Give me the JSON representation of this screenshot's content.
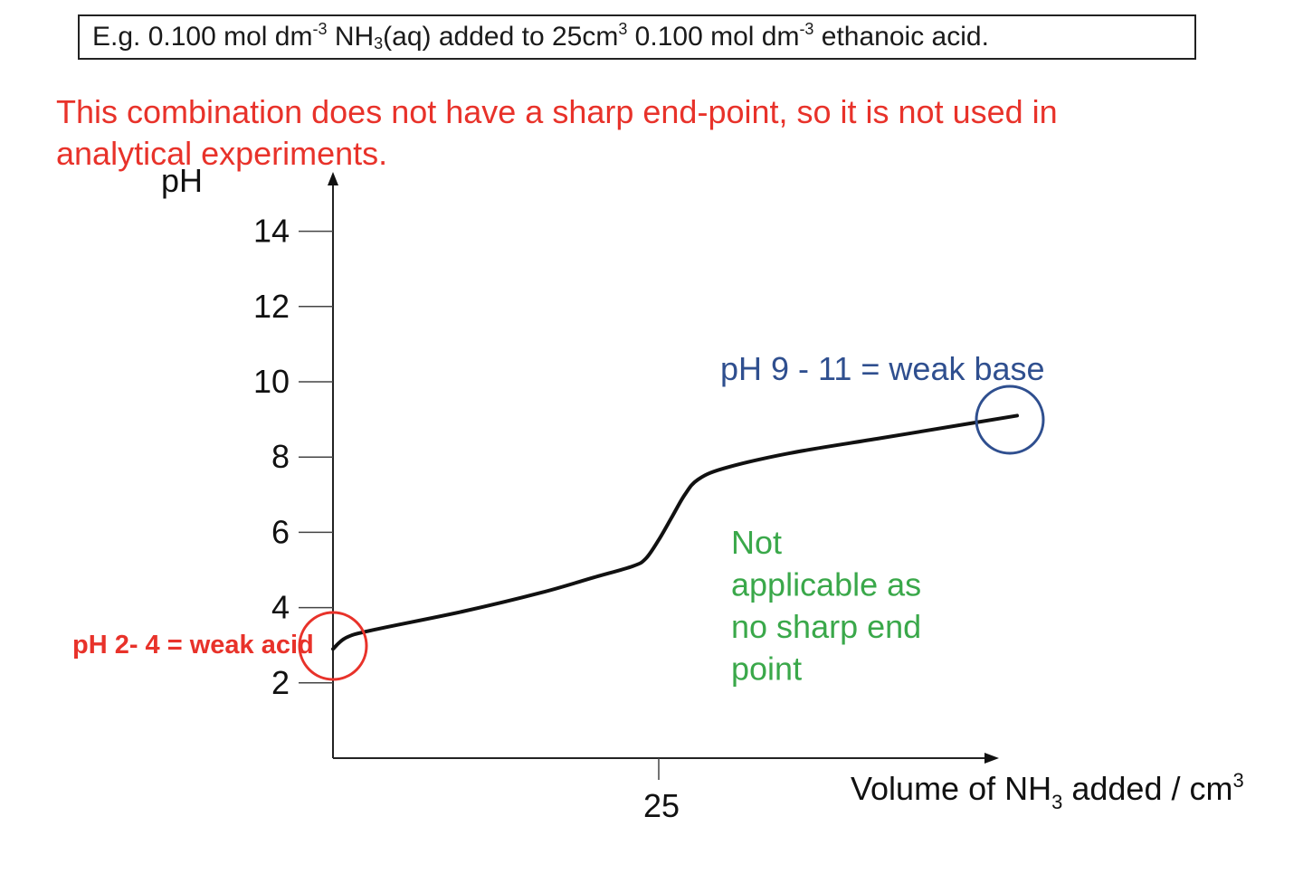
{
  "header": {
    "example_parts": [
      "E.g. 0.100 mol dm",
      "-3",
      " NH",
      "3",
      "(aq) added to 25cm",
      "3",
      " 0.100 mol dm",
      "-3",
      " ethanoic acid."
    ],
    "note": "This combination does not have a sharp end-point, so it is not used in analytical experiments."
  },
  "colors": {
    "note_red": "#e8322a",
    "base_blue": "#2f4f8f",
    "green_note": "#3aa84a",
    "curve": "#111111"
  },
  "chart_data": {
    "type": "line",
    "title": "",
    "ylabel": "pH",
    "xlabel_parts": [
      "Volume of NH",
      "3",
      " added / cm",
      "3"
    ],
    "yticks": [
      2,
      4,
      6,
      8,
      10,
      12,
      14
    ],
    "xticks": [
      25
    ],
    "xlim": [
      0,
      52
    ],
    "ylim": [
      0,
      15.8
    ],
    "grid": false,
    "series": [
      {
        "x": [
          0,
          1,
          3,
          10,
          16,
          20,
          23,
          24,
          25,
          26,
          27,
          28,
          30,
          35,
          42,
          49,
          52.5
        ],
        "y": [
          2.9,
          3.2,
          3.4,
          3.9,
          4.4,
          4.8,
          5.1,
          5.3,
          5.8,
          6.4,
          7.0,
          7.4,
          7.7,
          8.1,
          8.5,
          8.9,
          9.1
        ]
      }
    ],
    "annotations": [
      {
        "text": "pH 9 - 11 = weak base",
        "color": "#2f4f8f"
      },
      {
        "text": "pH 2- 4 = weak acid",
        "color": "#e8322a"
      },
      {
        "lines": [
          "Not",
          "applicable as",
          "no sharp end",
          "point"
        ],
        "color": "#3aa84a"
      }
    ]
  }
}
